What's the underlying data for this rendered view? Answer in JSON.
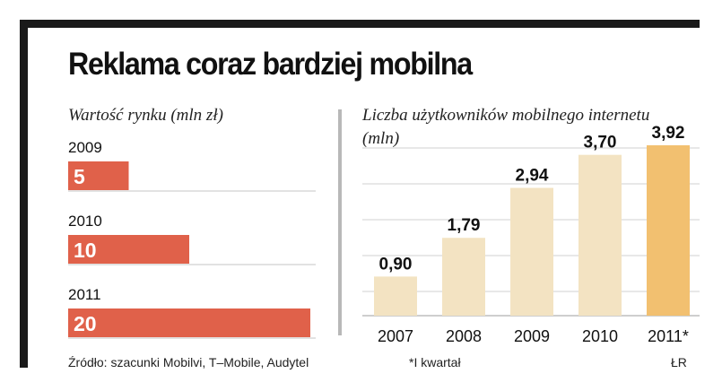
{
  "title": "Reklama coraz bardziej mobilna",
  "colors": {
    "accent": "#e0614a",
    "bar": "#f3e3c2",
    "bar_highlight": "#f2c070",
    "grid": "#d9d9d9",
    "frame": "#1a1a1a"
  },
  "chart_data": [
    {
      "type": "bar",
      "orientation": "horizontal",
      "title": "Wartość rynku (mln zł)",
      "categories": [
        "2009",
        "2010",
        "2011"
      ],
      "values": [
        5,
        10,
        20
      ],
      "value_labels": [
        "5",
        "10",
        "20"
      ],
      "xlim": [
        0,
        20
      ]
    },
    {
      "type": "bar",
      "orientation": "vertical",
      "title": "Liczba użytkowników mobilnego internetu (mln)",
      "categories": [
        "2007",
        "2008",
        "2009",
        "2010",
        "2011*"
      ],
      "values": [
        0.9,
        1.79,
        2.94,
        3.7,
        3.92
      ],
      "value_labels": [
        "0,90",
        "1,79",
        "2,94",
        "3,70",
        "3,92"
      ],
      "highlight_index": 4,
      "ylim": [
        0,
        3.92
      ],
      "grid": true
    }
  ],
  "footer": {
    "source": "Źródło: szacunki Mobilvi, T–Mobile, Audytel",
    "note": "*I kwartał",
    "credit": "ŁR"
  }
}
